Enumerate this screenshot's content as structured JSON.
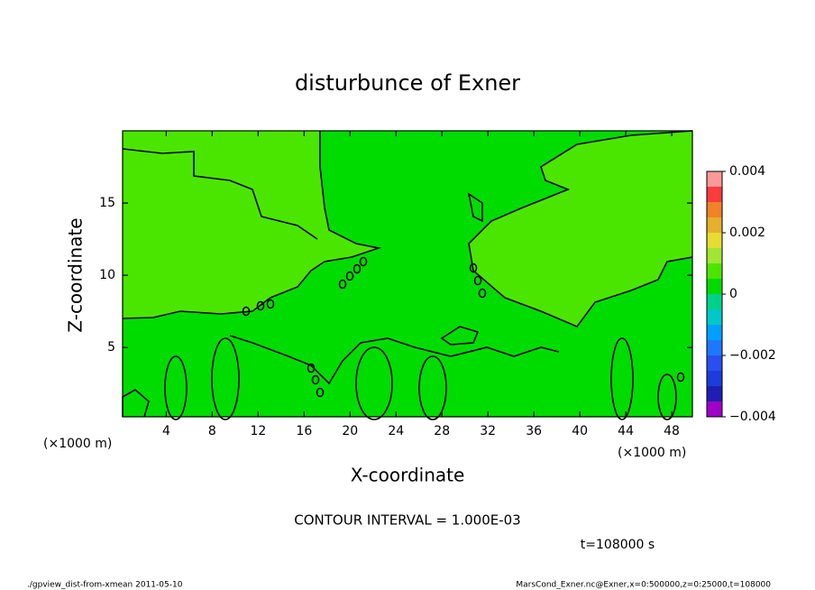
{
  "chart_data": {
    "type": "contour",
    "title": "disturbunce of Exner",
    "xlabel": "X-coordinate",
    "ylabel": "Z-coordinate",
    "xunit": "(×1000 m)",
    "yunit": "(×1000 m)",
    "xlim": [
      0.2,
      49.8
    ],
    "xticks": [
      4,
      8,
      12,
      16,
      20,
      24,
      28,
      32,
      36,
      40,
      44,
      48
    ],
    "ylim": [
      0.2,
      20
    ],
    "yticks": [
      5,
      10,
      15
    ],
    "colorbar": {
      "clim": [
        -0.004,
        0.004
      ],
      "cticks": [
        {
          "value": -0.004,
          "label": "−0.004"
        },
        {
          "value": -0.002,
          "label": "−0.002"
        },
        0,
        0.002,
        0.004
      ],
      "colors": [
        "#a000c8",
        "#1e1eb4",
        "#1e3cdc",
        "#2850f0",
        "#1e78ff",
        "#00a0ff",
        "#00c8c8",
        "#00d28c",
        "#00dc00",
        "#4be600",
        "#a0e632",
        "#e6dc32",
        "#e6af2d",
        "#f08228",
        "#fa3c3c",
        "#ff9999"
      ]
    },
    "annotation": "CONTOUR INTERVAL = 1.000E-03",
    "time_label": "t=108000 s",
    "footer_left": "./gpview_dist-from-xmean  2011-05-10",
    "footer_right": "MarsCond_Exner.nc@Exner,x=0:500000,z=0:25000,t=108000"
  }
}
